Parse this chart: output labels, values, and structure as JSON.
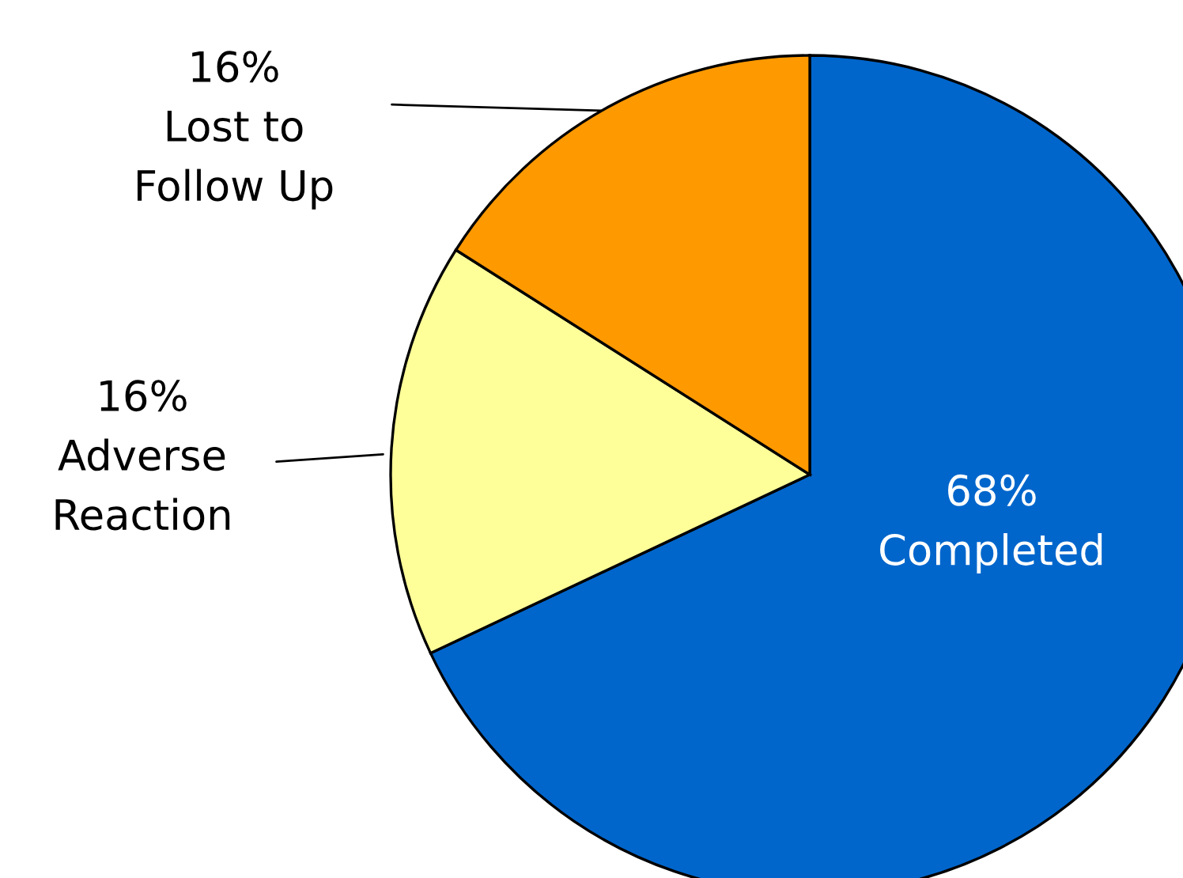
{
  "chart_data": {
    "type": "pie",
    "categories": [
      "Completed",
      "Adverse\nReaction",
      "Lost to\nFollow Up"
    ],
    "values": [
      68,
      16,
      16
    ],
    "colors": [
      "#0066cc",
      "#ffff99",
      "#ff9900"
    ],
    "value_labels": [
      "68%",
      "16%",
      "16%"
    ]
  }
}
